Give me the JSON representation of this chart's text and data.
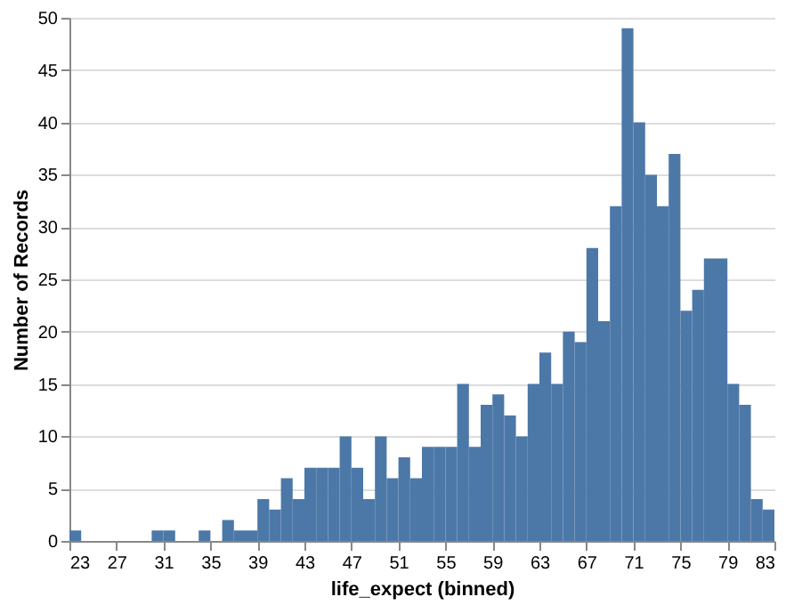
{
  "chart_data": {
    "type": "histogram",
    "xlabel": "life_expect (binned)",
    "ylabel": "Number of Records",
    "color": "#4c78a8",
    "bins": [
      23,
      24,
      25,
      26,
      27,
      28,
      29,
      30,
      31,
      32,
      33,
      34,
      35,
      36,
      37,
      38,
      39,
      40,
      41,
      42,
      43,
      44,
      45,
      46,
      47,
      48,
      49,
      50,
      51,
      52,
      53,
      54,
      55,
      56,
      57,
      58,
      59,
      60,
      61,
      62,
      63,
      64,
      65,
      66,
      67,
      68,
      69,
      70,
      71,
      72,
      73,
      74,
      75,
      76,
      77,
      78,
      79,
      80,
      81,
      82,
      83
    ],
    "values": [
      1,
      0,
      0,
      0,
      0,
      0,
      0,
      1,
      1,
      0,
      0,
      1,
      0,
      2,
      1,
      1,
      4,
      3,
      6,
      4,
      7,
      7,
      7,
      10,
      7,
      4,
      10,
      6,
      8,
      6,
      9,
      9,
      9,
      15,
      9,
      13,
      14,
      12,
      10,
      15,
      18,
      15,
      20,
      19,
      28,
      21,
      32,
      49,
      40,
      35,
      32,
      37,
      22,
      24,
      27,
      27,
      15,
      13,
      4,
      3
    ],
    "xlim": [
      23,
      83
    ],
    "xticks": [
      23,
      27,
      31,
      35,
      39,
      43,
      47,
      51,
      55,
      59,
      63,
      67,
      71,
      75,
      79,
      83
    ],
    "ylim": [
      0,
      50
    ],
    "yticks": [
      0,
      5,
      10,
      15,
      20,
      25,
      30,
      35,
      40,
      45,
      50
    ],
    "grid": "y"
  }
}
